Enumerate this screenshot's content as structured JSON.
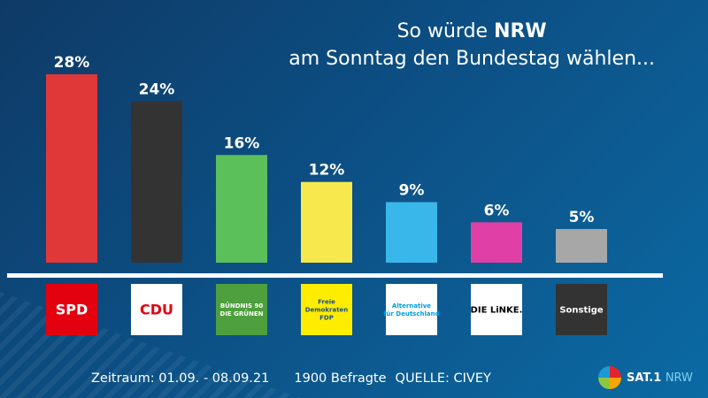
{
  "title": {
    "line1_prefix": "So würde ",
    "line1_bold": "NRW",
    "line2": "am Sonntag den Bundestag wählen..."
  },
  "chart_data": {
    "type": "bar",
    "categories": [
      "SPD",
      "CDU",
      "Bündnis 90 Die Grünen",
      "Freie Demokraten FDP",
      "Alternative für Deutschland",
      "DIE LINKE.",
      "Sonstige"
    ],
    "values": [
      28,
      24,
      16,
      12,
      9,
      6,
      5
    ],
    "value_labels": [
      "28%",
      "24%",
      "16%",
      "12%",
      "9%",
      "6%",
      "5%"
    ],
    "colors": [
      "#e03838",
      "#333333",
      "#5cc05a",
      "#f7e84e",
      "#3ab7ea",
      "#e040a5",
      "#a7a7a7"
    ],
    "ylim": [
      0,
      28
    ],
    "grid": false
  },
  "logos": [
    {
      "name": "spd",
      "bg": "#e3000f",
      "lines": [
        "SPD"
      ],
      "color": "#ffffff"
    },
    {
      "name": "cdu",
      "bg": "#ffffff",
      "lines": [
        "CDU"
      ],
      "color": "#e3000f"
    },
    {
      "name": "gruene",
      "bg": "#4e9f3d",
      "lines": [
        "BÜNDNIS 90",
        "DIE GRÜNEN"
      ],
      "color": "#ffffff"
    },
    {
      "name": "fdp",
      "bg": "#ffed00",
      "lines": [
        "Freie",
        "Demokraten",
        "FDP"
      ],
      "color": "#1e4e8c"
    },
    {
      "name": "afd",
      "bg": "#ffffff",
      "lines": [
        "Alternative",
        "für Deutschland"
      ],
      "color": "#009ee0"
    },
    {
      "name": "linke",
      "bg": "#ffffff",
      "lines": [
        "DIE LiNKE."
      ],
      "color": "#000000"
    },
    {
      "name": "sonstige",
      "bg": "#333333",
      "lines": [
        "Sonstige"
      ],
      "color": "#ffffff"
    }
  ],
  "footer": {
    "zeitraum": "Zeitraum: 01.09. - 08.09.21",
    "befragte": "1900 Befragte",
    "quelle": "QUELLE: CIVEY"
  },
  "brand": {
    "name": "SAT.1",
    "region": "NRW"
  }
}
